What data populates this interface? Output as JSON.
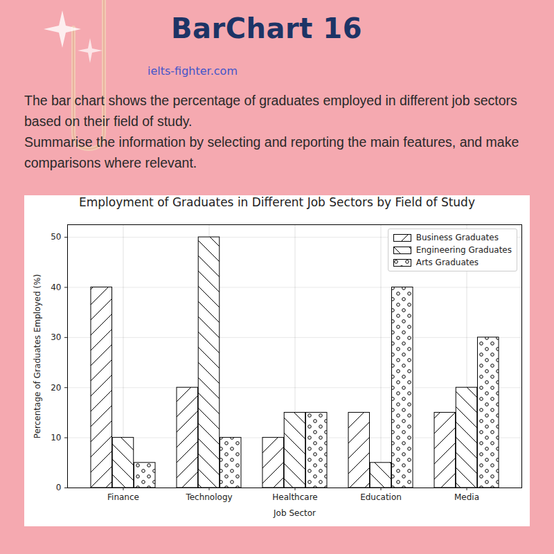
{
  "page": {
    "heading": "BarChart 16",
    "site": "ielts-fighter.com",
    "prompt": [
      "The bar chart shows the percentage of graduates employed in different job sectors based on their field of study.",
      "Summarise the information by selecting and reporting the main features, and make comparisons where relevant."
    ]
  },
  "chart_data": {
    "type": "bar",
    "title": "Employment of Graduates in Different Job Sectors by Field of Study",
    "xlabel": "Job Sector",
    "ylabel": "Percentage of Graduates Employed (%)",
    "categories": [
      "Finance",
      "Technology",
      "Healthcare",
      "Education",
      "Media"
    ],
    "series": [
      {
        "name": "Business Graduates",
        "color": "#ffffff",
        "values": [
          40,
          20,
          10,
          15,
          15
        ]
      },
      {
        "name": "Engineering Graduates",
        "color": "#ffffff",
        "values": [
          10,
          50,
          15,
          5,
          20
        ]
      },
      {
        "name": "Arts Graduates",
        "color": "#ffffff",
        "values": [
          5,
          10,
          15,
          40,
          30
        ]
      }
    ],
    "ylim": [
      0,
      52.5
    ],
    "yticks": [
      0,
      10,
      20,
      30,
      40,
      50
    ],
    "grid": true,
    "legend": "upper right"
  }
}
